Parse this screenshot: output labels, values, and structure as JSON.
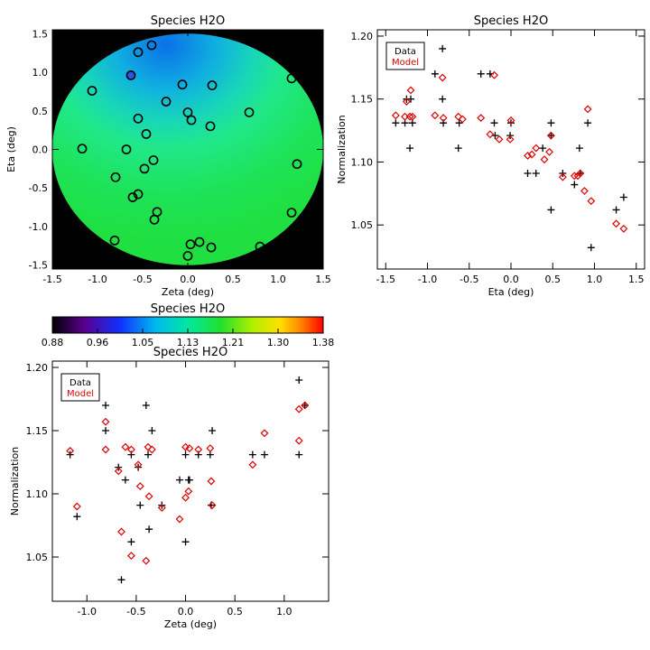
{
  "colors": {
    "model": "#e00000",
    "data": "#000000",
    "axis": "#000000",
    "background_disk": "#000000"
  },
  "chart_data": [
    {
      "type": "scatter",
      "id": "map",
      "title": "Species H2O",
      "xlabel": "Zeta (deg)",
      "ylabel": "Eta (deg)",
      "xlim": [
        -1.5,
        1.5
      ],
      "ylim": [
        -1.55,
        1.55
      ],
      "xticks": [
        "-1.5",
        "-1.0",
        "-0.5",
        "0.0",
        "0.5",
        "1.0",
        "1.5"
      ],
      "yticks": [
        "-1.5",
        "-1.0",
        "-0.5",
        "0.0",
        "0.5",
        "1.0",
        "1.5"
      ],
      "field_radius_deg": 1.5,
      "points": [
        [
          -0.4,
          1.35
        ],
        [
          -0.55,
          1.26
        ],
        [
          -0.63,
          0.96
        ],
        [
          -1.06,
          0.76
        ],
        [
          -0.06,
          0.84
        ],
        [
          0.27,
          0.83
        ],
        [
          1.15,
          0.92
        ],
        [
          -0.24,
          0.62
        ],
        [
          0.0,
          0.48
        ],
        [
          0.04,
          0.38
        ],
        [
          0.68,
          0.48
        ],
        [
          -0.55,
          0.4
        ],
        [
          -0.46,
          0.2
        ],
        [
          0.25,
          0.3
        ],
        [
          -1.17,
          0.01
        ],
        [
          -0.68,
          0.0
        ],
        [
          -0.38,
          -0.14
        ],
        [
          -0.48,
          -0.25
        ],
        [
          1.21,
          -0.19
        ],
        [
          -0.8,
          -0.36
        ],
        [
          -0.55,
          -0.58
        ],
        [
          -0.61,
          -0.62
        ],
        [
          -0.34,
          -0.81
        ],
        [
          -0.37,
          -0.91
        ],
        [
          1.15,
          -0.82
        ],
        [
          0.13,
          -1.2
        ],
        [
          0.03,
          -1.23
        ],
        [
          -0.81,
          -1.18
        ],
        [
          0.26,
          -1.27
        ],
        [
          0.8,
          -1.26
        ],
        [
          0.0,
          -1.38
        ]
      ],
      "highlight_point": [
        -0.63,
        0.96
      ]
    },
    {
      "type": "scatter",
      "id": "eta",
      "title": "Species H2O",
      "xlabel": "Eta (deg)",
      "ylabel": "Normalization",
      "xlim": [
        -1.6,
        1.6
      ],
      "ylim": [
        1.015,
        1.205
      ],
      "xticks": [
        "-1.5",
        "-1.0",
        "-0.5",
        "0.0",
        "0.5",
        "1.0",
        "1.5"
      ],
      "yticks": [
        "1.05",
        "1.10",
        "1.15",
        "1.20"
      ],
      "legend": [
        "Data",
        "Model"
      ],
      "series": [
        {
          "name": "Data",
          "marker": "plus",
          "points": [
            [
              -1.38,
              1.131
            ],
            [
              -1.27,
              1.131
            ],
            [
              -1.25,
              1.15
            ],
            [
              -1.2,
              1.15
            ],
            [
              -1.21,
              1.111
            ],
            [
              -1.18,
              1.131
            ],
            [
              -0.91,
              1.17
            ],
            [
              -0.82,
              1.19
            ],
            [
              -0.82,
              1.15
            ],
            [
              -0.81,
              1.131
            ],
            [
              -0.62,
              1.131
            ],
            [
              -0.63,
              1.111
            ],
            [
              -0.36,
              1.17
            ],
            [
              -0.25,
              1.17
            ],
            [
              -0.2,
              1.131
            ],
            [
              -0.19,
              1.121
            ],
            [
              -0.01,
              1.121
            ],
            [
              0.0,
              1.131
            ],
            [
              0.2,
              1.091
            ],
            [
              0.3,
              1.091
            ],
            [
              0.38,
              1.111
            ],
            [
              0.48,
              1.131
            ],
            [
              0.48,
              1.121
            ],
            [
              0.48,
              1.062
            ],
            [
              0.62,
              1.091
            ],
            [
              0.76,
              1.082
            ],
            [
              0.83,
              1.091
            ],
            [
              0.82,
              1.111
            ],
            [
              0.92,
              1.131
            ],
            [
              0.96,
              1.032
            ],
            [
              1.26,
              1.062
            ],
            [
              1.35,
              1.072
            ]
          ]
        },
        {
          "name": "Model",
          "marker": "diamond",
          "points": [
            [
              -1.38,
              1.137
            ],
            [
              -1.27,
              1.136
            ],
            [
              -1.25,
              1.148
            ],
            [
              -1.2,
              1.157
            ],
            [
              -1.21,
              1.136
            ],
            [
              -1.18,
              1.136
            ],
            [
              -0.91,
              1.137
            ],
            [
              -0.81,
              1.135
            ],
            [
              -0.82,
              1.167
            ],
            [
              -0.63,
              1.136
            ],
            [
              -0.58,
              1.134
            ],
            [
              -0.36,
              1.135
            ],
            [
              -0.25,
              1.122
            ],
            [
              -0.2,
              1.169
            ],
            [
              -0.14,
              1.118
            ],
            [
              -0.01,
              1.118
            ],
            [
              0.0,
              1.133
            ],
            [
              0.2,
              1.105
            ],
            [
              0.25,
              1.106
            ],
            [
              0.3,
              1.111
            ],
            [
              0.4,
              1.102
            ],
            [
              0.46,
              1.108
            ],
            [
              0.48,
              1.121
            ],
            [
              0.62,
              1.088
            ],
            [
              0.76,
              1.089
            ],
            [
              0.8,
              1.089
            ],
            [
              0.83,
              1.091
            ],
            [
              0.92,
              1.142
            ],
            [
              0.88,
              1.077
            ],
            [
              0.96,
              1.069
            ],
            [
              1.26,
              1.051
            ],
            [
              1.35,
              1.047
            ]
          ]
        }
      ]
    },
    {
      "type": "colorbar",
      "id": "colorbar",
      "title": "Species H2O",
      "ticks": [
        "0.88",
        "0.96",
        "1.05",
        "1.13",
        "1.21",
        "1.30",
        "1.38"
      ],
      "range": [
        0.88,
        1.38
      ]
    },
    {
      "type": "scatter",
      "id": "zeta",
      "title": "Species H2O",
      "xlabel": "Zeta (deg)",
      "ylabel": "Normalization",
      "xlim": [
        -1.35,
        1.45
      ],
      "ylim": [
        1.015,
        1.205
      ],
      "xticks": [
        "-1.0",
        "-0.5",
        "0.0",
        "0.5",
        "1.0"
      ],
      "yticks": [
        "1.05",
        "1.10",
        "1.15",
        "1.20"
      ],
      "legend": [
        "Data",
        "Model"
      ],
      "series": [
        {
          "name": "Data",
          "marker": "plus",
          "points": [
            [
              -1.17,
              1.131
            ],
            [
              -1.1,
              1.082
            ],
            [
              -0.81,
              1.17
            ],
            [
              -0.81,
              1.15
            ],
            [
              -0.68,
              1.121
            ],
            [
              -0.65,
              1.032
            ],
            [
              -0.61,
              1.111
            ],
            [
              -0.55,
              1.131
            ],
            [
              -0.55,
              1.062
            ],
            [
              -0.48,
              1.121
            ],
            [
              -0.46,
              1.091
            ],
            [
              -0.4,
              1.17
            ],
            [
              -0.37,
              1.072
            ],
            [
              -0.38,
              1.131
            ],
            [
              -0.34,
              1.15
            ],
            [
              -0.24,
              1.091
            ],
            [
              -0.06,
              1.111
            ],
            [
              0.0,
              1.131
            ],
            [
              0.0,
              1.062
            ],
            [
              0.03,
              1.111
            ],
            [
              0.04,
              1.111
            ],
            [
              0.13,
              1.131
            ],
            [
              0.25,
              1.131
            ],
            [
              0.26,
              1.091
            ],
            [
              0.27,
              1.15
            ],
            [
              0.68,
              1.131
            ],
            [
              0.8,
              1.131
            ],
            [
              1.15,
              1.131
            ],
            [
              1.15,
              1.19
            ],
            [
              1.21,
              1.17
            ]
          ]
        },
        {
          "name": "Model",
          "marker": "diamond",
          "points": [
            [
              -1.17,
              1.134
            ],
            [
              -1.1,
              1.09
            ],
            [
              -0.81,
              1.157
            ],
            [
              -0.81,
              1.135
            ],
            [
              -0.68,
              1.118
            ],
            [
              -0.65,
              1.07
            ],
            [
              -0.61,
              1.137
            ],
            [
              -0.55,
              1.135
            ],
            [
              -0.55,
              1.051
            ],
            [
              -0.48,
              1.123
            ],
            [
              -0.46,
              1.106
            ],
            [
              -0.4,
              1.047
            ],
            [
              -0.37,
              1.098
            ],
            [
              -0.38,
              1.137
            ],
            [
              -0.34,
              1.135
            ],
            [
              -0.24,
              1.089
            ],
            [
              -0.06,
              1.08
            ],
            [
              0.0,
              1.137
            ],
            [
              0.0,
              1.097
            ],
            [
              0.03,
              1.102
            ],
            [
              0.04,
              1.136
            ],
            [
              0.13,
              1.135
            ],
            [
              0.25,
              1.136
            ],
            [
              0.26,
              1.11
            ],
            [
              0.27,
              1.091
            ],
            [
              0.68,
              1.123
            ],
            [
              0.8,
              1.148
            ],
            [
              1.15,
              1.167
            ],
            [
              1.15,
              1.142
            ],
            [
              1.21,
              1.17
            ]
          ]
        }
      ]
    }
  ]
}
